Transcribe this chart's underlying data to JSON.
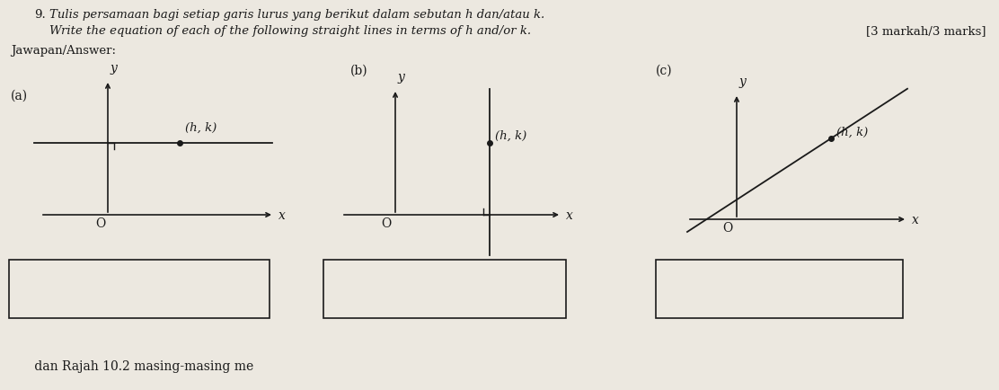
{
  "bg_color": "#cdc9c0",
  "paper_color": "#ece8e0",
  "title1": "Tulis persamaan bagi setiap garis lurus yang berikut dalam sebutan h dan/atau k.",
  "title2": "Write the equation of each of the following straight lines in terms of h and/or k.",
  "title_num": "9.",
  "marks": "[3 markah/3 marks]",
  "answer_label": "Jawapan/Answer:",
  "footer": "      dan Rajah 10.2 masing-masing me",
  "lc": "#1a1a1a",
  "tc": "#1a1a1a",
  "part_a": "(a)",
  "part_b": "(b)",
  "part_c": "(c)",
  "hk": "(h, k)",
  "origin": "O",
  "x_label": "x",
  "y_label": "y"
}
